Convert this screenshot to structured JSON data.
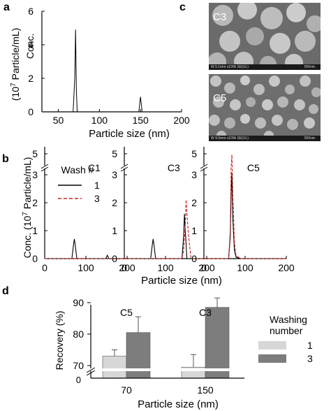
{
  "panels": {
    "a": "a",
    "b": "b",
    "c": "c",
    "d": "d"
  },
  "panel_a": {
    "ylabel_line1": "Conc.",
    "ylabel_line2": "(10",
    "ylabel_sup": "7",
    "ylabel_rest": " Particle/mL)",
    "xlabel": "Particle size (nm)",
    "xticks": [
      "50",
      "100",
      "150",
      "200"
    ],
    "yticks": [
      "0",
      "2",
      "4",
      "6"
    ]
  },
  "panel_b": {
    "ylabel": "Conc. (10",
    "ylabel_sup": "7",
    "ylabel_rest": " Particle/mL)",
    "xlabel": "Particle size (nm)",
    "legend_title": "Wash #",
    "legend": [
      "1",
      "3"
    ],
    "subplots": [
      "C1",
      "C3",
      "C5"
    ],
    "xticks": [
      "0",
      "100",
      "200"
    ],
    "yticks": [
      "0",
      "1",
      "2",
      "3",
      "5"
    ]
  },
  "panel_c": {
    "top": {
      "label": "C3",
      "info": "W 5.1mm x100k SE(UL)",
      "scale": "500nm"
    },
    "bottom": {
      "label": "C5",
      "info": "W 9.0mm x100k SE(UL)",
      "scale": "500nm"
    }
  },
  "panel_d": {
    "ylabel": "Recovery (%)",
    "xlabel": "Particle size (nm)",
    "yticks": [
      "70",
      "80",
      "90"
    ],
    "ytick_zero": "0",
    "group_labels": [
      "C5",
      "C3"
    ],
    "xticks": [
      "70",
      "150"
    ],
    "legend_title_1": "Washing",
    "legend_title_2": "number",
    "legend": [
      "1",
      "3"
    ]
  },
  "chart_data": [
    {
      "type": "line",
      "panel": "a",
      "xlabel": "Particle size (nm)",
      "ylabel": "Conc. (10^7 Particle/mL)",
      "xlim": [
        30,
        200
      ],
      "ylim": [
        0,
        6
      ],
      "series": [
        {
          "x": [
            30,
            68,
            70,
            71,
            72,
            73,
            75,
            148,
            150,
            152,
            200
          ],
          "y": [
            0,
            0,
            2.0,
            4.9,
            1.2,
            0,
            0,
            0,
            0.9,
            0,
            0
          ]
        }
      ]
    },
    {
      "type": "line",
      "panel": "b",
      "subplot": "C1",
      "xlabel": "Particle size (nm)",
      "ylabel": "Conc. (10^7 Particle/mL)",
      "xlim": [
        0,
        200
      ],
      "ylim": [
        0,
        5
      ],
      "series": [
        {
          "name": "1",
          "x": [
            0,
            66,
            70,
            72,
            74,
            78,
            148,
            152,
            156,
            200
          ],
          "y": [
            0,
            0,
            0.5,
            0.7,
            0.5,
            0,
            0,
            0.12,
            0,
            0
          ]
        },
        {
          "name": "3",
          "x": [
            0,
            200
          ],
          "y": [
            0,
            0
          ]
        }
      ]
    },
    {
      "type": "line",
      "panel": "b",
      "subplot": "C3",
      "xlabel": "Particle size (nm)",
      "ylabel": "Conc. (10^7 Particle/mL)",
      "xlim": [
        0,
        200
      ],
      "ylim": [
        0,
        5
      ],
      "series": [
        {
          "name": "1",
          "x": [
            0,
            64,
            68,
            70,
            72,
            76,
            140,
            144,
            146,
            148,
            152,
            200
          ],
          "y": [
            0,
            0,
            0.5,
            0.7,
            0.5,
            0,
            0,
            0.8,
            1.6,
            1.0,
            0,
            0
          ]
        },
        {
          "name": "3",
          "x": [
            0,
            140,
            144,
            148,
            150,
            152,
            156,
            162,
            200
          ],
          "y": [
            0,
            0,
            0.3,
            1.2,
            2.1,
            1.6,
            0.8,
            0,
            0
          ]
        }
      ]
    },
    {
      "type": "line",
      "panel": "b",
      "subplot": "C5",
      "xlabel": "Particle size (nm)",
      "ylabel": "Conc. (10^7 Particle/mL)",
      "xlim": [
        0,
        200
      ],
      "ylim": [
        0,
        5
      ],
      "series": [
        {
          "name": "1",
          "x": [
            0,
            60,
            64,
            66,
            68,
            70,
            74,
            78,
            90,
            200
          ],
          "y": [
            0,
            0,
            0.8,
            2.3,
            3.2,
            1.5,
            0.3,
            0.05,
            0,
            0
          ]
        },
        {
          "name": "3",
          "x": [
            0,
            60,
            64,
            66,
            68,
            70,
            74,
            78,
            90,
            200
          ],
          "y": [
            0,
            0,
            1.0,
            3.8,
            4.9,
            2.4,
            0.6,
            0.1,
            0,
            0
          ]
        }
      ]
    },
    {
      "type": "bar",
      "panel": "d",
      "xlabel": "Particle size (nm)",
      "ylabel": "Recovery (%)",
      "categories": [
        "70",
        "150"
      ],
      "ylim": [
        65,
        95
      ],
      "series": [
        {
          "name": "1",
          "values": [
            73,
            69.5
          ],
          "errors": [
            2,
            4
          ]
        },
        {
          "name": "3",
          "values": [
            80.5,
            88.5
          ],
          "errors": [
            5,
            3
          ]
        }
      ]
    }
  ]
}
